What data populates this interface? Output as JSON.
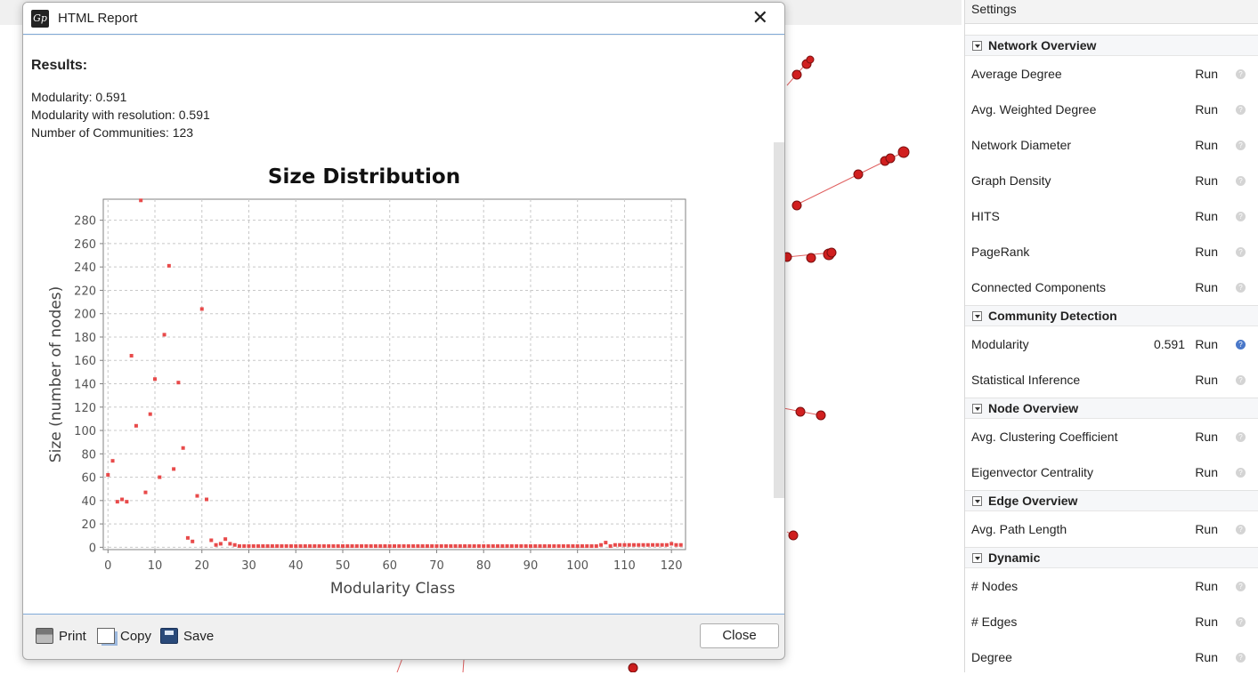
{
  "dialog": {
    "title": "HTML Report",
    "app_icon": "gephi-logo-icon",
    "results_heading": "Results:",
    "metrics": [
      "Modularity: 0.591",
      "Modularity with resolution: 0.591",
      "Number of Communities: 123"
    ],
    "buttons": {
      "print": "Print",
      "copy": "Copy",
      "save": "Save",
      "close": "Close"
    }
  },
  "chart_data": {
    "type": "scatter",
    "title": "Size Distribution",
    "xlabel": "Modularity Class",
    "ylabel": "Size (number of nodes)",
    "xlim": [
      -1,
      123
    ],
    "ylim": [
      -2,
      298
    ],
    "x_ticks": [
      0,
      10,
      20,
      30,
      40,
      50,
      60,
      70,
      80,
      90,
      100,
      110,
      120
    ],
    "y_ticks": [
      0,
      20,
      40,
      60,
      80,
      100,
      120,
      140,
      160,
      180,
      200,
      220,
      240,
      260,
      280
    ],
    "grid": true,
    "color": "#e84a4a",
    "points": [
      [
        0,
        62
      ],
      [
        1,
        74
      ],
      [
        2,
        39
      ],
      [
        3,
        41
      ],
      [
        4,
        39
      ],
      [
        5,
        164
      ],
      [
        6,
        104
      ],
      [
        7,
        297
      ],
      [
        8,
        47
      ],
      [
        9,
        114
      ],
      [
        10,
        144
      ],
      [
        11,
        60
      ],
      [
        12,
        182
      ],
      [
        13,
        241
      ],
      [
        14,
        67
      ],
      [
        15,
        141
      ],
      [
        16,
        85
      ],
      [
        17,
        8
      ],
      [
        18,
        5
      ],
      [
        19,
        44
      ],
      [
        20,
        204
      ],
      [
        21,
        41
      ],
      [
        22,
        6
      ],
      [
        23,
        2
      ],
      [
        24,
        3
      ],
      [
        25,
        7
      ],
      [
        26,
        3
      ],
      [
        27,
        2
      ],
      [
        28,
        1
      ],
      [
        29,
        1
      ],
      [
        30,
        1
      ],
      [
        31,
        1
      ],
      [
        32,
        1
      ],
      [
        33,
        1
      ],
      [
        34,
        1
      ],
      [
        35,
        1
      ],
      [
        36,
        1
      ],
      [
        37,
        1
      ],
      [
        38,
        1
      ],
      [
        39,
        1
      ],
      [
        40,
        1
      ],
      [
        41,
        1
      ],
      [
        42,
        1
      ],
      [
        43,
        1
      ],
      [
        44,
        1
      ],
      [
        45,
        1
      ],
      [
        46,
        1
      ],
      [
        47,
        1
      ],
      [
        48,
        1
      ],
      [
        49,
        1
      ],
      [
        50,
        1
      ],
      [
        51,
        1
      ],
      [
        52,
        1
      ],
      [
        53,
        1
      ],
      [
        54,
        1
      ],
      [
        55,
        1
      ],
      [
        56,
        1
      ],
      [
        57,
        1
      ],
      [
        58,
        1
      ],
      [
        59,
        1
      ],
      [
        60,
        1
      ],
      [
        61,
        1
      ],
      [
        62,
        1
      ],
      [
        63,
        1
      ],
      [
        64,
        1
      ],
      [
        65,
        1
      ],
      [
        66,
        1
      ],
      [
        67,
        1
      ],
      [
        68,
        1
      ],
      [
        69,
        1
      ],
      [
        70,
        1
      ],
      [
        71,
        1
      ],
      [
        72,
        1
      ],
      [
        73,
        1
      ],
      [
        74,
        1
      ],
      [
        75,
        1
      ],
      [
        76,
        1
      ],
      [
        77,
        1
      ],
      [
        78,
        1
      ],
      [
        79,
        1
      ],
      [
        80,
        1
      ],
      [
        81,
        1
      ],
      [
        82,
        1
      ],
      [
        83,
        1
      ],
      [
        84,
        1
      ],
      [
        85,
        1
      ],
      [
        86,
        1
      ],
      [
        87,
        1
      ],
      [
        88,
        1
      ],
      [
        89,
        1
      ],
      [
        90,
        1
      ],
      [
        91,
        1
      ],
      [
        92,
        1
      ],
      [
        93,
        1
      ],
      [
        94,
        1
      ],
      [
        95,
        1
      ],
      [
        96,
        1
      ],
      [
        97,
        1
      ],
      [
        98,
        1
      ],
      [
        99,
        1
      ],
      [
        100,
        1
      ],
      [
        101,
        1
      ],
      [
        102,
        1
      ],
      [
        103,
        1
      ],
      [
        104,
        1
      ],
      [
        105,
        2
      ],
      [
        106,
        4
      ],
      [
        107,
        1
      ],
      [
        108,
        2
      ],
      [
        109,
        2
      ],
      [
        110,
        2
      ],
      [
        111,
        2
      ],
      [
        112,
        2
      ],
      [
        113,
        2
      ],
      [
        114,
        2
      ],
      [
        115,
        2
      ],
      [
        116,
        2
      ],
      [
        117,
        2
      ],
      [
        118,
        2
      ],
      [
        119,
        2
      ],
      [
        120,
        3
      ],
      [
        121,
        2
      ],
      [
        122,
        2
      ]
    ]
  },
  "settings": {
    "title": "Settings",
    "sections": [
      {
        "name": "Network Overview",
        "rows": [
          {
            "label": "Average Degree",
            "run": "Run"
          },
          {
            "label": "Avg. Weighted Degree",
            "run": "Run"
          },
          {
            "label": "Network Diameter",
            "run": "Run"
          },
          {
            "label": "Graph Density",
            "run": "Run"
          },
          {
            "label": "HITS",
            "run": "Run"
          },
          {
            "label": "PageRank",
            "run": "Run"
          },
          {
            "label": "Connected Components",
            "run": "Run"
          }
        ]
      },
      {
        "name": "Community Detection",
        "rows": [
          {
            "label": "Modularity",
            "value": "0.591",
            "run": "Run",
            "active": true
          },
          {
            "label": "Statistical Inference",
            "run": "Run"
          }
        ]
      },
      {
        "name": "Node Overview",
        "rows": [
          {
            "label": "Avg. Clustering Coefficient",
            "run": "Run"
          },
          {
            "label": "Eigenvector Centrality",
            "run": "Run"
          }
        ]
      },
      {
        "name": "Edge Overview",
        "rows": [
          {
            "label": "Avg. Path Length",
            "run": "Run"
          }
        ]
      },
      {
        "name": "Dynamic",
        "rows": [
          {
            "label": "# Nodes",
            "run": "Run"
          },
          {
            "label": "# Edges",
            "run": "Run"
          },
          {
            "label": "Degree",
            "run": "Run"
          }
        ]
      }
    ]
  },
  "background_graph": {
    "node_color": "#d11f1f",
    "edge_color": "#e06060"
  }
}
